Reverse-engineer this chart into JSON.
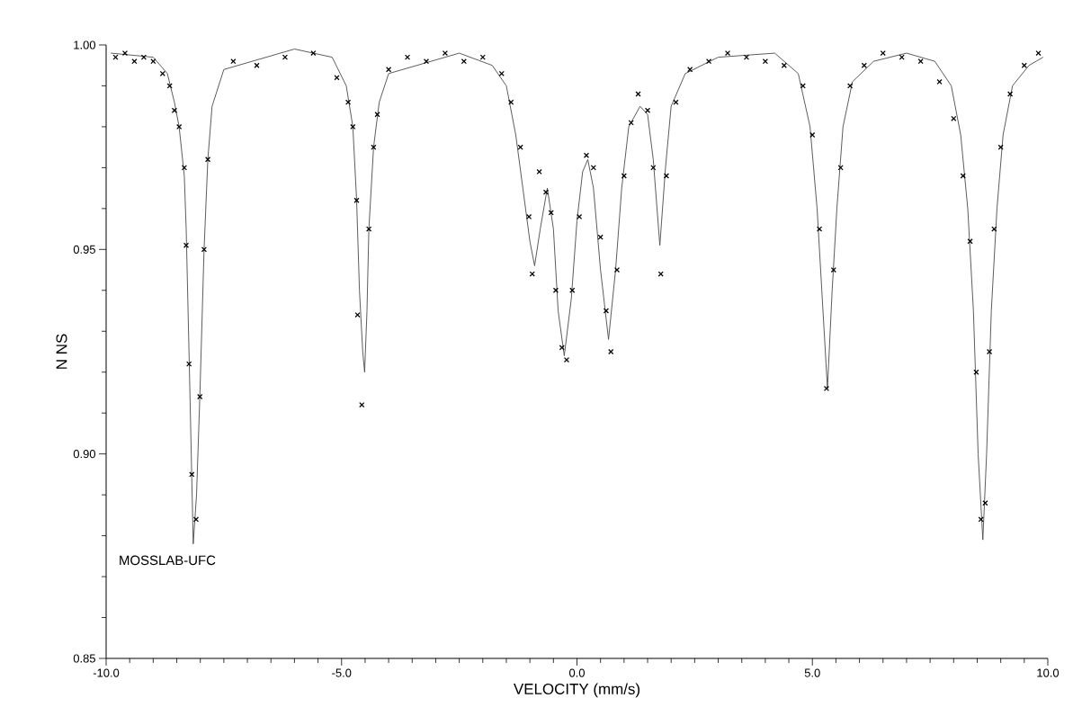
{
  "chart_data": {
    "type": "line",
    "xlabel": "VELOCITY (mm/s)",
    "ylabel": "N NS",
    "xlim": [
      -10,
      10
    ],
    "ylim": [
      0.85,
      1.0
    ],
    "xticks": [
      {
        "value": -10,
        "label": "-10.0"
      },
      {
        "value": -5,
        "label": "-5.0"
      },
      {
        "value": 0,
        "label": "0.0"
      },
      {
        "value": 5,
        "label": "5.0"
      },
      {
        "value": 10,
        "label": "10.0"
      }
    ],
    "yticks": [
      {
        "value": 0.85,
        "label": "0.85"
      },
      {
        "value": 0.9,
        "label": "0.90"
      },
      {
        "value": 0.95,
        "label": "0.95"
      },
      {
        "value": 1.0,
        "label": "1.00"
      }
    ],
    "grid": false,
    "annotations": [
      "MOSSLAB-UFC"
    ],
    "series": [
      {
        "type": "scatter",
        "marker": "cross",
        "color": "#000000",
        "x": [
          -9.8,
          -9.6,
          -9.4,
          -9.2,
          -9.0,
          -8.8,
          -8.65,
          -8.55,
          -8.45,
          -8.34,
          -8.3,
          -8.24,
          -8.18,
          -8.09,
          -8.01,
          -7.92,
          -7.84,
          -7.3,
          -6.8,
          -6.2,
          -5.6,
          -5.1,
          -4.86,
          -4.76,
          -4.68,
          -4.66,
          -4.57,
          -4.42,
          -4.32,
          -4.24,
          -4.0,
          -3.6,
          -3.2,
          -2.8,
          -2.4,
          -2.0,
          -1.6,
          -1.4,
          -1.2,
          -1.02,
          -0.95,
          -0.8,
          -0.66,
          -0.55,
          -0.45,
          -0.32,
          -0.22,
          -0.1,
          0.05,
          0.2,
          0.35,
          0.5,
          0.62,
          0.72,
          0.85,
          1.0,
          1.15,
          1.3,
          1.5,
          1.62,
          1.78,
          1.9,
          2.1,
          2.4,
          2.8,
          3.2,
          3.6,
          4.0,
          4.4,
          4.8,
          5.0,
          5.15,
          5.3,
          5.45,
          5.6,
          5.8,
          6.1,
          6.5,
          6.9,
          7.3,
          7.7,
          8.0,
          8.2,
          8.35,
          8.48,
          8.58,
          8.67,
          8.76,
          8.86,
          9.0,
          9.2,
          9.5,
          9.8
        ],
        "values": [
          0.997,
          0.998,
          0.996,
          0.997,
          0.996,
          0.993,
          0.99,
          0.984,
          0.98,
          0.97,
          0.951,
          0.922,
          0.895,
          0.884,
          0.914,
          0.95,
          0.972,
          0.996,
          0.995,
          0.997,
          0.998,
          0.992,
          0.986,
          0.98,
          0.962,
          0.934,
          0.912,
          0.955,
          0.975,
          0.983,
          0.994,
          0.997,
          0.996,
          0.998,
          0.996,
          0.997,
          0.993,
          0.986,
          0.975,
          0.958,
          0.944,
          0.969,
          0.964,
          0.959,
          0.94,
          0.926,
          0.923,
          0.94,
          0.958,
          0.973,
          0.97,
          0.953,
          0.935,
          0.925,
          0.945,
          0.968,
          0.981,
          0.988,
          0.984,
          0.97,
          0.944,
          0.968,
          0.986,
          0.994,
          0.996,
          0.998,
          0.997,
          0.996,
          0.995,
          0.99,
          0.978,
          0.955,
          0.916,
          0.945,
          0.97,
          0.99,
          0.995,
          0.998,
          0.997,
          0.996,
          0.991,
          0.982,
          0.968,
          0.952,
          0.92,
          0.884,
          0.888,
          0.925,
          0.955,
          0.975,
          0.988,
          0.995,
          0.998
        ]
      },
      {
        "type": "line",
        "marker": "none",
        "line_style": "solid",
        "color": "#4a4a4a",
        "x": [
          -9.9,
          -9.0,
          -8.7,
          -8.55,
          -8.45,
          -8.34,
          -8.3,
          -8.24,
          -8.15,
          -8.08,
          -8.01,
          -7.92,
          -7.84,
          -7.75,
          -7.5,
          -6.0,
          -5.2,
          -4.9,
          -4.76,
          -4.68,
          -4.62,
          -4.55,
          -4.51,
          -4.46,
          -4.42,
          -4.32,
          -4.2,
          -4.0,
          -2.5,
          -1.8,
          -1.5,
          -1.3,
          -1.15,
          -1.0,
          -0.9,
          -0.78,
          -0.63,
          -0.5,
          -0.4,
          -0.27,
          -0.12,
          0.0,
          0.12,
          0.23,
          0.35,
          0.5,
          0.67,
          0.82,
          0.95,
          1.1,
          1.34,
          1.5,
          1.62,
          1.76,
          1.88,
          2.0,
          2.3,
          3.0,
          4.2,
          4.7,
          4.95,
          5.1,
          5.2,
          5.32,
          5.42,
          5.52,
          5.65,
          5.85,
          6.3,
          7.0,
          7.6,
          7.95,
          8.15,
          8.3,
          8.42,
          8.52,
          8.62,
          8.7,
          8.8,
          8.92,
          9.05,
          9.25,
          9.6,
          9.9
        ],
        "values": [
          0.998,
          0.997,
          0.993,
          0.986,
          0.98,
          0.968,
          0.955,
          0.925,
          0.878,
          0.89,
          0.914,
          0.95,
          0.972,
          0.985,
          0.994,
          0.999,
          0.997,
          0.99,
          0.98,
          0.962,
          0.94,
          0.925,
          0.92,
          0.935,
          0.955,
          0.975,
          0.986,
          0.993,
          0.998,
          0.995,
          0.99,
          0.978,
          0.965,
          0.952,
          0.946,
          0.955,
          0.965,
          0.955,
          0.935,
          0.924,
          0.938,
          0.957,
          0.969,
          0.972,
          0.965,
          0.945,
          0.928,
          0.945,
          0.965,
          0.98,
          0.985,
          0.983,
          0.972,
          0.951,
          0.97,
          0.985,
          0.993,
          0.997,
          0.998,
          0.993,
          0.98,
          0.96,
          0.94,
          0.916,
          0.94,
          0.96,
          0.98,
          0.991,
          0.996,
          0.998,
          0.996,
          0.99,
          0.978,
          0.96,
          0.935,
          0.9,
          0.879,
          0.9,
          0.935,
          0.96,
          0.978,
          0.99,
          0.995,
          0.997
        ]
      }
    ]
  }
}
